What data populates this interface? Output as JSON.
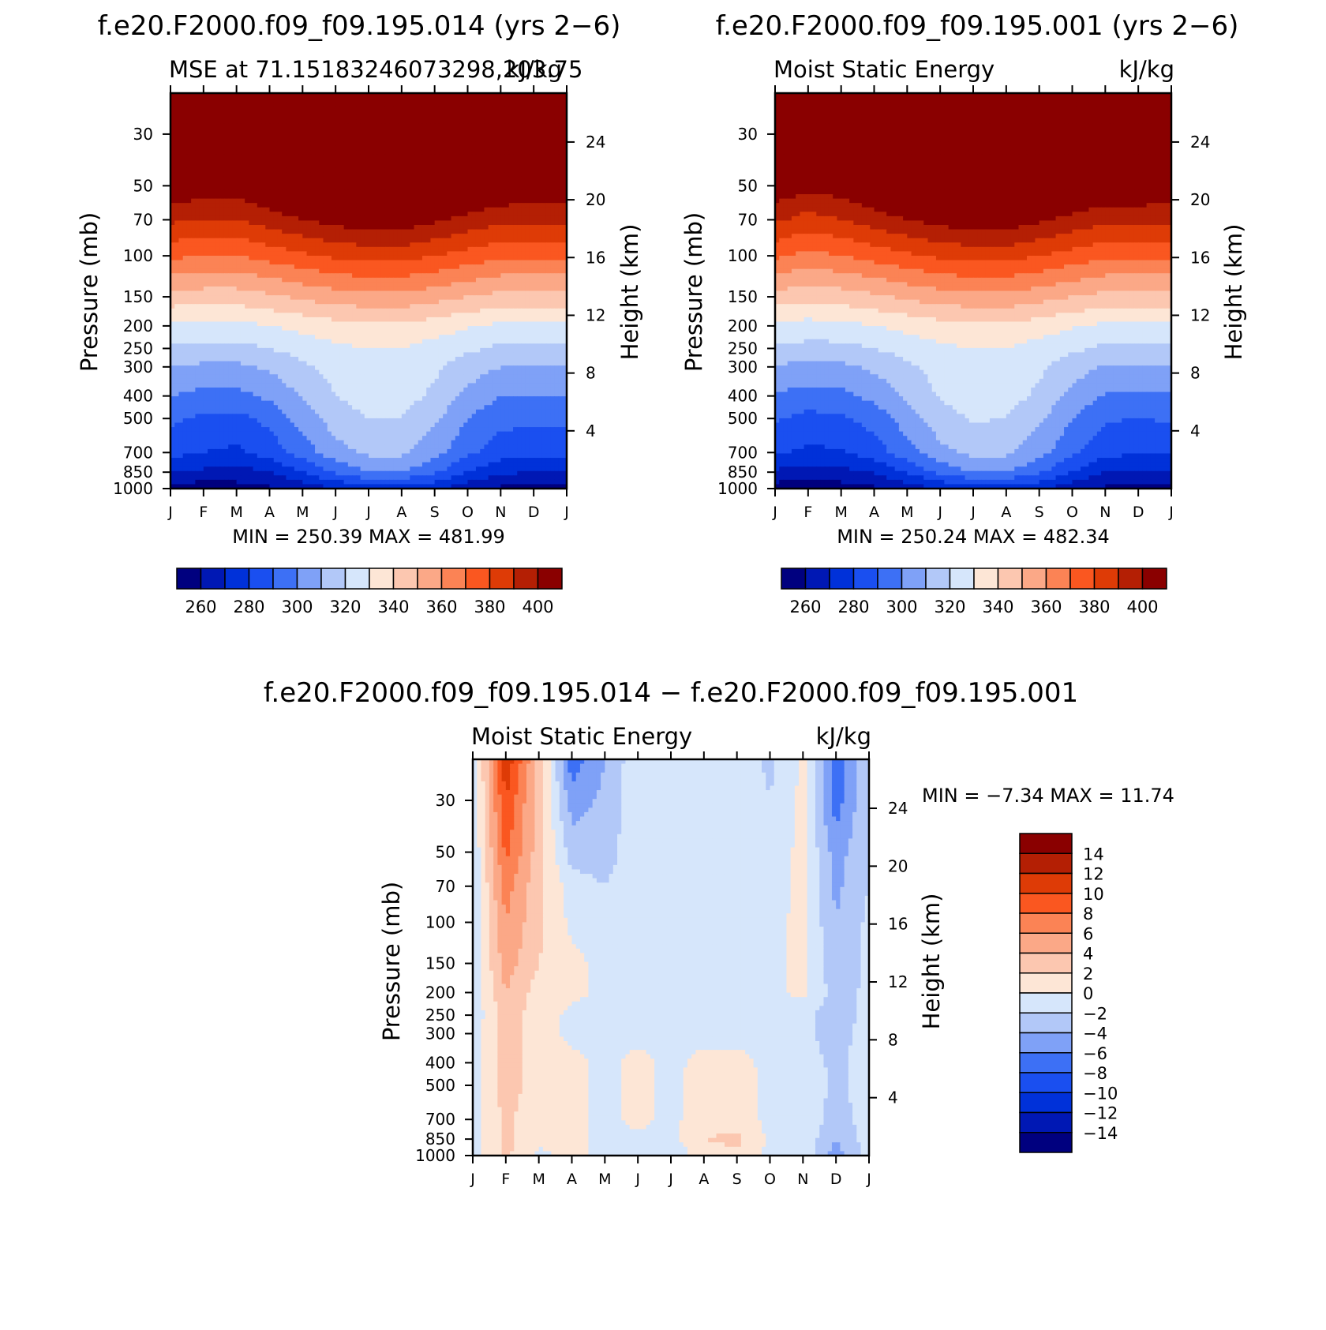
{
  "colors": {
    "abs_levels": [
      "#00007f",
      "#0018b4",
      "#0031d9",
      "#1a4ff0",
      "#3d70f5",
      "#7fa1f7",
      "#b2c8f8",
      "#d6e6fb",
      "#fde6d6",
      "#fcc7b0",
      "#fba887",
      "#fb8355",
      "#fa5720",
      "#de3b06",
      "#b41f04",
      "#8a0000"
    ],
    "diff_levels": [
      "#00007f",
      "#0018b4",
      "#0031d9",
      "#1a4ff0",
      "#3d70f5",
      "#7fa1f7",
      "#b2c8f8",
      "#d6e6fb",
      "#fde6d6",
      "#fcc7b0",
      "#fba887",
      "#fb8355",
      "#fa5720",
      "#de3b06",
      "#b41f04",
      "#8a0000"
    ]
  },
  "panels": {
    "p1": {
      "top_title": "f.e20.F2000.f09_f09.195.014 (yrs 2−6)",
      "left_title": "MSE at 71.15183246073298,203.75",
      "right_title": "kJ/kg",
      "ylabel": "Pressure (mb)",
      "y2label": "Height (km)",
      "minmax": "MIN = 250.39 MAX = 481.99"
    },
    "p2": {
      "top_title": "f.e20.F2000.f09_f09.195.001 (yrs 2−6)",
      "left_title": "Moist Static Energy",
      "right_title": "kJ/kg",
      "ylabel": "Pressure (mb)",
      "y2label": "Height (km)",
      "minmax": "MIN = 250.24 MAX = 482.34"
    },
    "p3": {
      "top_title": "f.e20.F2000.f09_f09.195.014 − f.e20.F2000.f09_f09.195.001",
      "left_title": "Moist Static Energy",
      "right_title": "kJ/kg",
      "ylabel": "Pressure (mb)",
      "y2label": "Height (km)",
      "minmax": "MIN = −7.34 MAX = 11.74"
    }
  },
  "chart_data": [
    {
      "type": "heatmap",
      "title": "MSE at 71.15183246073298,203.75",
      "units": "kJ/kg",
      "xlabel": "",
      "ylabel": "Pressure (mb)",
      "y2label": "Height (km)",
      "log_y": true,
      "y_reversed": true,
      "x_ticks": [
        "J",
        "F",
        "M",
        "A",
        "M",
        "J",
        "J",
        "A",
        "S",
        "O",
        "N",
        "D",
        "J"
      ],
      "y_ticks": [
        30,
        50,
        70,
        100,
        150,
        200,
        250,
        300,
        400,
        500,
        700,
        850,
        1000
      ],
      "y2_ticks": [
        4,
        8,
        12,
        16,
        20,
        24
      ],
      "months": [
        1,
        2,
        3,
        4,
        5,
        6,
        7,
        8,
        9,
        10,
        11,
        12,
        13
      ],
      "levels_hPa": [
        1000,
        850,
        700,
        500,
        400,
        300,
        250,
        200,
        150,
        100,
        70,
        50,
        30,
        20
      ],
      "values": [
        [
          255,
          254,
          256,
          258,
          264,
          270,
          275,
          276,
          272,
          264,
          258,
          256,
          255
        ],
        [
          270,
          268,
          266,
          270,
          280,
          292,
          300,
          300,
          292,
          280,
          272,
          270,
          270
        ],
        [
          283,
          280,
          278,
          284,
          295,
          306,
          312,
          312,
          304,
          292,
          285,
          283,
          283
        ],
        [
          292,
          288,
          287,
          293,
          304,
          315,
          320,
          320,
          312,
          300,
          293,
          292,
          292
        ],
        [
          300,
          297,
          297,
          302,
          311,
          320,
          324,
          324,
          318,
          307,
          300,
          300,
          300
        ],
        [
          310,
          308,
          308,
          312,
          318,
          324,
          327,
          327,
          322,
          315,
          310,
          310,
          310
        ],
        [
          318,
          317,
          317,
          320,
          324,
          328,
          330,
          330,
          326,
          322,
          318,
          318,
          318
        ],
        [
          328,
          327,
          327,
          330,
          333,
          336,
          338,
          338,
          335,
          331,
          328,
          328,
          328
        ],
        [
          346,
          345,
          345,
          348,
          352,
          355,
          357,
          357,
          354,
          350,
          347,
          346,
          346
        ],
        [
          372,
          370,
          370,
          374,
          378,
          382,
          384,
          384,
          380,
          376,
          372,
          372,
          372
        ],
        [
          392,
          390,
          390,
          395,
          400,
          404,
          406,
          406,
          402,
          397,
          393,
          392,
          392
        ],
        [
          408,
          407,
          406,
          412,
          418,
          423,
          425,
          425,
          421,
          414,
          410,
          408,
          408
        ],
        [
          440,
          440,
          440,
          445,
          450,
          455,
          458,
          458,
          455,
          448,
          442,
          440,
          440
        ],
        [
          470,
          470,
          470,
          474,
          478,
          481,
          482,
          482,
          480,
          476,
          472,
          470,
          470
        ]
      ],
      "contour_levels": [
        250,
        260,
        270,
        280,
        290,
        300,
        310,
        320,
        330,
        340,
        350,
        360,
        370,
        380,
        390,
        400
      ],
      "colorbar_ticks": [
        260,
        280,
        300,
        320,
        340,
        360,
        380,
        400
      ],
      "min": 250.39,
      "max": 481.99
    },
    {
      "type": "heatmap",
      "title": "Moist Static Energy",
      "units": "kJ/kg",
      "xlabel": "",
      "ylabel": "Pressure (mb)",
      "y2label": "Height (km)",
      "log_y": true,
      "y_reversed": true,
      "x_ticks": [
        "J",
        "F",
        "M",
        "A",
        "M",
        "J",
        "J",
        "A",
        "S",
        "O",
        "N",
        "D",
        "J"
      ],
      "y_ticks": [
        30,
        50,
        70,
        100,
        150,
        200,
        250,
        300,
        400,
        500,
        700,
        850,
        1000
      ],
      "y2_ticks": [
        4,
        8,
        12,
        16,
        20,
        24
      ],
      "months": [
        1,
        2,
        3,
        4,
        5,
        6,
        7,
        8,
        9,
        10,
        11,
        12,
        13
      ],
      "levels_hPa": [
        1000,
        850,
        700,
        500,
        400,
        300,
        250,
        200,
        150,
        100,
        70,
        50,
        30,
        20
      ],
      "values": [
        [
          255,
          253,
          255,
          258,
          264,
          270,
          275,
          276,
          272,
          264,
          258,
          255,
          255
        ],
        [
          268,
          266,
          267,
          271,
          281,
          293,
          300,
          300,
          292,
          280,
          270,
          268,
          268
        ],
        [
          281,
          278,
          279,
          285,
          296,
          307,
          313,
          312,
          304,
          292,
          283,
          281,
          281
        ],
        [
          291,
          287,
          288,
          294,
          305,
          316,
          321,
          320,
          312,
          300,
          291,
          290,
          291
        ],
        [
          299,
          296,
          297,
          303,
          312,
          321,
          325,
          324,
          318,
          307,
          299,
          299,
          299
        ],
        [
          309,
          307,
          308,
          312,
          318,
          324,
          328,
          327,
          322,
          315,
          309,
          309,
          309
        ],
        [
          318,
          317,
          317,
          320,
          324,
          328,
          330,
          330,
          326,
          322,
          318,
          318,
          318
        ],
        [
          328,
          326,
          327,
          330,
          333,
          336,
          338,
          338,
          335,
          331,
          328,
          328,
          328
        ],
        [
          346,
          343,
          345,
          348,
          352,
          355,
          357,
          357,
          354,
          350,
          347,
          346,
          346
        ],
        [
          372,
          367,
          370,
          374,
          378,
          382,
          384,
          384,
          380,
          376,
          372,
          372,
          372
        ],
        [
          392,
          386,
          390,
          395,
          400,
          404,
          406,
          406,
          402,
          397,
          393,
          393,
          392
        ],
        [
          408,
          403,
          406,
          412,
          418,
          423,
          425,
          425,
          421,
          414,
          410,
          410,
          408
        ],
        [
          440,
          436,
          440,
          445,
          450,
          455,
          458,
          458,
          455,
          448,
          442,
          441,
          440
        ],
        [
          470,
          468,
          470,
          474,
          478,
          481,
          482,
          482,
          480,
          476,
          472,
          471,
          470
        ]
      ],
      "contour_levels": [
        250,
        260,
        270,
        280,
        290,
        300,
        310,
        320,
        330,
        340,
        350,
        360,
        370,
        380,
        390,
        400
      ],
      "colorbar_ticks": [
        260,
        280,
        300,
        320,
        340,
        360,
        380,
        400
      ],
      "min": 250.24,
      "max": 482.34
    },
    {
      "type": "heatmap",
      "title": "Moist Static Energy",
      "units": "kJ/kg",
      "xlabel": "",
      "ylabel": "Pressure (mb)",
      "y2label": "Height (km)",
      "log_y": true,
      "y_reversed": true,
      "x_ticks": [
        "J",
        "F",
        "M",
        "A",
        "M",
        "J",
        "J",
        "A",
        "S",
        "O",
        "N",
        "D",
        "J"
      ],
      "y_ticks": [
        30,
        50,
        70,
        100,
        150,
        200,
        250,
        300,
        400,
        500,
        700,
        850,
        1000
      ],
      "y2_ticks": [
        4,
        8,
        12,
        16,
        20,
        24
      ],
      "months": [
        1,
        2,
        3,
        4,
        5,
        6,
        7,
        8,
        9,
        10,
        11,
        12,
        13
      ],
      "levels_hPa": [
        1000,
        850,
        700,
        500,
        400,
        300,
        250,
        200,
        150,
        100,
        70,
        50,
        30,
        20
      ],
      "values": [
        [
          -1.0,
          2.5,
          -0.5,
          0.5,
          -0.5,
          -0.5,
          -1.5,
          1.0,
          1.5,
          -0.5,
          -0.5,
          -5.0,
          -1.0
        ],
        [
          -1.0,
          2.5,
          0.5,
          0.5,
          -0.5,
          -0.5,
          -0.5,
          2.0,
          2.5,
          -0.5,
          -0.5,
          -4.0,
          -1.0
        ],
        [
          -1.0,
          2.5,
          0.5,
          0.5,
          -0.5,
          0.5,
          -0.5,
          1.0,
          1.0,
          -0.5,
          -0.5,
          -3.0,
          -1.0
        ],
        [
          -1.0,
          3.0,
          1.0,
          0.5,
          -0.5,
          0.5,
          -0.5,
          1.0,
          1.0,
          -0.5,
          -0.5,
          -2.5,
          -1.0
        ],
        [
          -1.0,
          3.0,
          1.0,
          0.5,
          -0.5,
          0.5,
          -0.5,
          0.5,
          0.5,
          -0.5,
          -1.0,
          -2.5,
          -1.0
        ],
        [
          -1.0,
          3.0,
          1.0,
          -0.5,
          -0.5,
          -0.5,
          -0.5,
          -0.5,
          -0.5,
          -0.5,
          -1.5,
          -3.0,
          -1.0
        ],
        [
          -1.5,
          3.0,
          1.0,
          -0.5,
          -0.5,
          -0.5,
          -0.5,
          -0.5,
          -0.5,
          -0.5,
          -1.5,
          -3.0,
          -1.5
        ],
        [
          -1.5,
          4.0,
          1.0,
          0.5,
          -0.5,
          -0.5,
          -0.5,
          -0.5,
          -0.5,
          -0.5,
          0.5,
          -3.0,
          -1.5
        ],
        [
          -1.5,
          5.0,
          2.0,
          0.5,
          -0.5,
          -0.5,
          -0.5,
          -0.5,
          -0.5,
          -0.5,
          0.5,
          -3.5,
          -1.5
        ],
        [
          -1.5,
          6.0,
          2.5,
          -0.5,
          -1.0,
          -0.5,
          -0.5,
          -0.5,
          -0.5,
          -0.5,
          0.5,
          -4.0,
          -1.5
        ],
        [
          -2.0,
          7.0,
          2.5,
          -1.0,
          -2.0,
          -0.5,
          -0.5,
          -0.5,
          -0.5,
          -1.0,
          0.5,
          -4.5,
          -2.0
        ],
        [
          -2.0,
          8.5,
          3.0,
          -3.0,
          -3.0,
          -0.5,
          -0.5,
          -0.5,
          -0.5,
          -1.0,
          0.5,
          -5.0,
          -2.0
        ],
        [
          -2.0,
          10.0,
          3.0,
          -5.0,
          -3.5,
          -0.5,
          -0.5,
          -0.5,
          -0.5,
          -2.0,
          0.5,
          -7.0,
          -2.0
        ],
        [
          -2.0,
          11.7,
          3.5,
          -7.3,
          -4.0,
          -0.5,
          -0.5,
          -0.5,
          -0.5,
          -2.5,
          0.5,
          -7.0,
          -2.0
        ]
      ],
      "contour_levels": [
        -16,
        -14,
        -12,
        -10,
        -8,
        -6,
        -4,
        -2,
        0,
        2,
        4,
        6,
        8,
        10,
        12,
        14
      ],
      "colorbar_ticks": [
        14,
        12,
        10,
        8,
        6,
        4,
        2,
        0,
        -2,
        -4,
        -6,
        -8,
        -10,
        -12,
        -14
      ],
      "colorbar_labels": [
        "14",
        "12",
        "10",
        "8",
        "6",
        "4",
        "2",
        "0",
        "−2",
        "−4",
        "−6",
        "−8",
        "−10",
        "−12",
        "−14"
      ],
      "min": -7.34,
      "max": 11.74
    }
  ]
}
